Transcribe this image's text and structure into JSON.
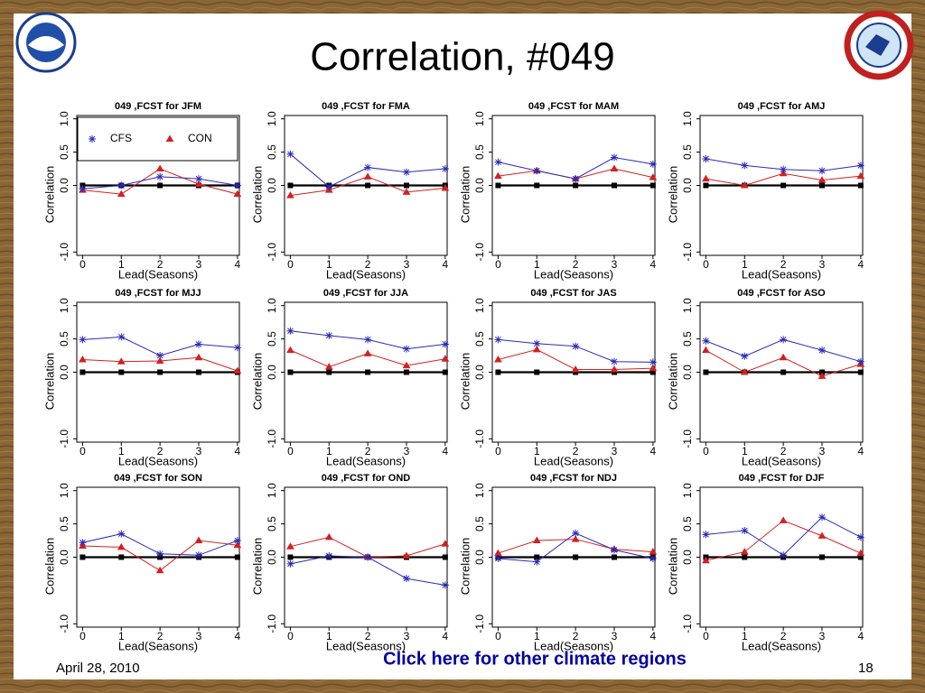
{
  "slide_title": "Correlation, #049",
  "date": "April 28, 2010",
  "page_number": "18",
  "link": "Click here for other climate regions",
  "chart_data": [
    {
      "type": "line",
      "title": "049 ,FCST for JFM",
      "xlabel": "Lead(Seasons)",
      "ylabel": "Correlation",
      "legend": "upper left",
      "x": [
        0,
        1,
        2,
        3,
        4
      ],
      "xlim": [
        -0.15,
        4.05
      ],
      "xticks": [
        0,
        1,
        2,
        3,
        4
      ],
      "ylim": [
        -1.05,
        1.05
      ],
      "yticks": [
        {
          "value": 1,
          "label": "1.0"
        },
        {
          "value": 0.5,
          "label": "0.5"
        },
        {
          "value": 0,
          "label": "0.0"
        },
        {
          "value": -1,
          "label": "-1.0"
        }
      ],
      "series": [
        {
          "name": "CFS",
          "color": "#2a2ab8",
          "marker": "star",
          "values": [
            -0.05,
            0.0,
            0.13,
            0.1,
            0.0
          ]
        },
        {
          "name": "CON",
          "color": "#d42020",
          "marker": "triangle",
          "values": [
            -0.07,
            -0.13,
            0.25,
            0.02,
            -0.13
          ]
        },
        {
          "color": "#000000",
          "marker": "square",
          "values": [
            0,
            0,
            0,
            0,
            0
          ]
        }
      ]
    },
    {
      "type": "line",
      "title": "049 ,FCST for FMA",
      "xlabel": "Lead(Seasons)",
      "ylabel": "Correlation",
      "x": [
        0,
        1,
        2,
        3,
        4
      ],
      "xlim": [
        -0.15,
        4.05
      ],
      "xticks": [
        0,
        1,
        2,
        3,
        4
      ],
      "ylim": [
        -1.05,
        1.05
      ],
      "yticks": [
        {
          "value": 1,
          "label": "1.0"
        },
        {
          "value": 0.5,
          "label": "0.5"
        },
        {
          "value": 0,
          "label": "0.0"
        },
        {
          "value": -1,
          "label": "-1.0"
        }
      ],
      "series": [
        {
          "name": "CFS",
          "color": "#2a2ab8",
          "marker": "star",
          "values": [
            0.47,
            -0.02,
            0.27,
            0.2,
            0.25
          ]
        },
        {
          "name": "CON",
          "color": "#d42020",
          "marker": "triangle",
          "values": [
            -0.15,
            -0.07,
            0.13,
            -0.1,
            -0.04
          ]
        },
        {
          "color": "#000000",
          "marker": "square",
          "values": [
            0,
            0,
            0,
            0,
            0
          ]
        }
      ]
    },
    {
      "type": "line",
      "title": "049 ,FCST for MAM",
      "xlabel": "Lead(Seasons)",
      "ylabel": "Correlation",
      "x": [
        0,
        1,
        2,
        3,
        4
      ],
      "xlim": [
        -0.15,
        4.05
      ],
      "xticks": [
        0,
        1,
        2,
        3,
        4
      ],
      "ylim": [
        -1.05,
        1.05
      ],
      "yticks": [
        {
          "value": 1,
          "label": "1.0"
        },
        {
          "value": 0.5,
          "label": "0.5"
        },
        {
          "value": 0,
          "label": "0.0"
        },
        {
          "value": -1,
          "label": "-1.0"
        }
      ],
      "series": [
        {
          "name": "CFS",
          "color": "#2a2ab8",
          "marker": "star",
          "values": [
            0.35,
            0.22,
            0.1,
            0.42,
            0.32
          ]
        },
        {
          "name": "CON",
          "color": "#d42020",
          "marker": "triangle",
          "values": [
            0.14,
            0.22,
            0.1,
            0.25,
            0.12
          ]
        },
        {
          "color": "#000000",
          "marker": "square",
          "values": [
            0,
            0,
            0,
            0,
            0
          ]
        }
      ]
    },
    {
      "type": "line",
      "title": "049 ,FCST for AMJ",
      "xlabel": "Lead(Seasons)",
      "ylabel": "Correlation",
      "x": [
        0,
        1,
        2,
        3,
        4
      ],
      "xlim": [
        -0.15,
        4.05
      ],
      "xticks": [
        0,
        1,
        2,
        3,
        4
      ],
      "ylim": [
        -1.05,
        1.05
      ],
      "yticks": [
        {
          "value": 1,
          "label": "1.0"
        },
        {
          "value": 0.5,
          "label": "0.5"
        },
        {
          "value": 0,
          "label": "0.0"
        },
        {
          "value": -1,
          "label": "-1.0"
        }
      ],
      "series": [
        {
          "name": "CFS",
          "color": "#2a2ab8",
          "marker": "star",
          "values": [
            0.4,
            0.3,
            0.24,
            0.22,
            0.3
          ]
        },
        {
          "name": "CON",
          "color": "#d42020",
          "marker": "triangle",
          "values": [
            0.1,
            0.0,
            0.18,
            0.08,
            0.14
          ]
        },
        {
          "color": "#000000",
          "marker": "square",
          "values": [
            0,
            0,
            0,
            0,
            0
          ]
        }
      ]
    },
    {
      "type": "line",
      "title": "049 ,FCST for MJJ",
      "xlabel": "Lead(Seasons)",
      "ylabel": "Correlation",
      "x": [
        0,
        1,
        2,
        3,
        4
      ],
      "xlim": [
        -0.15,
        4.05
      ],
      "xticks": [
        0,
        1,
        2,
        3,
        4
      ],
      "ylim": [
        -1.05,
        1.05
      ],
      "yticks": [
        {
          "value": 1,
          "label": "1.0"
        },
        {
          "value": 0.5,
          "label": "0.5"
        },
        {
          "value": 0,
          "label": "0.0"
        },
        {
          "value": -1,
          "label": "-1.0"
        }
      ],
      "series": [
        {
          "name": "CFS",
          "color": "#2a2ab8",
          "marker": "star",
          "values": [
            0.49,
            0.53,
            0.25,
            0.42,
            0.37
          ]
        },
        {
          "name": "CON",
          "color": "#d42020",
          "marker": "triangle",
          "values": [
            0.19,
            0.16,
            0.17,
            0.22,
            0.02
          ]
        },
        {
          "color": "#000000",
          "marker": "square",
          "values": [
            0,
            0,
            0,
            0,
            0
          ]
        }
      ]
    },
    {
      "type": "line",
      "title": "049 ,FCST for JJA",
      "xlabel": "Lead(Seasons)",
      "ylabel": "Correlation",
      "x": [
        0,
        1,
        2,
        3,
        4
      ],
      "xlim": [
        -0.15,
        4.05
      ],
      "xticks": [
        0,
        1,
        2,
        3,
        4
      ],
      "ylim": [
        -1.05,
        1.05
      ],
      "yticks": [
        {
          "value": 1,
          "label": "1.0"
        },
        {
          "value": 0.5,
          "label": "0.5"
        },
        {
          "value": 0,
          "label": "0.0"
        },
        {
          "value": -1,
          "label": "-1.0"
        }
      ],
      "series": [
        {
          "name": "CFS",
          "color": "#2a2ab8",
          "marker": "star",
          "values": [
            0.62,
            0.55,
            0.49,
            0.35,
            0.42
          ]
        },
        {
          "name": "CON",
          "color": "#d42020",
          "marker": "triangle",
          "values": [
            0.33,
            0.08,
            0.28,
            0.1,
            0.2
          ]
        },
        {
          "color": "#000000",
          "marker": "square",
          "values": [
            0,
            0,
            0,
            0,
            0
          ]
        }
      ]
    },
    {
      "type": "line",
      "title": "049 ,FCST for JAS",
      "xlabel": "Lead(Seasons)",
      "ylabel": "Correlation",
      "x": [
        0,
        1,
        2,
        3,
        4
      ],
      "xlim": [
        -0.15,
        4.05
      ],
      "xticks": [
        0,
        1,
        2,
        3,
        4
      ],
      "ylim": [
        -1.05,
        1.05
      ],
      "yticks": [
        {
          "value": 1,
          "label": "1.0"
        },
        {
          "value": 0.5,
          "label": "0.5"
        },
        {
          "value": 0,
          "label": "0.0"
        },
        {
          "value": -1,
          "label": "-1.0"
        }
      ],
      "series": [
        {
          "name": "CFS",
          "color": "#2a2ab8",
          "marker": "star",
          "values": [
            0.49,
            0.43,
            0.39,
            0.16,
            0.15
          ]
        },
        {
          "name": "CON",
          "color": "#d42020",
          "marker": "triangle",
          "values": [
            0.19,
            0.34,
            0.04,
            0.04,
            0.06
          ]
        },
        {
          "color": "#000000",
          "marker": "square",
          "values": [
            0,
            0,
            0,
            0,
            0
          ]
        }
      ]
    },
    {
      "type": "line",
      "title": "049 ,FCST for ASO",
      "xlabel": "Lead(Seasons)",
      "ylabel": "Correlation",
      "x": [
        0,
        1,
        2,
        3,
        4
      ],
      "xlim": [
        -0.15,
        4.05
      ],
      "xticks": [
        0,
        1,
        2,
        3,
        4
      ],
      "ylim": [
        -1.05,
        1.05
      ],
      "yticks": [
        {
          "value": 1,
          "label": "1.0"
        },
        {
          "value": 0.5,
          "label": "0.5"
        },
        {
          "value": 0,
          "label": "0.0"
        },
        {
          "value": -1,
          "label": "-1.0"
        }
      ],
      "series": [
        {
          "name": "CFS",
          "color": "#2a2ab8",
          "marker": "star",
          "values": [
            0.47,
            0.24,
            0.49,
            0.33,
            0.16
          ]
        },
        {
          "name": "CON",
          "color": "#d42020",
          "marker": "triangle",
          "values": [
            0.33,
            0.0,
            0.22,
            -0.06,
            0.12
          ]
        },
        {
          "color": "#000000",
          "marker": "square",
          "values": [
            0,
            0,
            0,
            0,
            0
          ]
        }
      ]
    },
    {
      "type": "line",
      "title": "049 ,FCST for SON",
      "xlabel": "Lead(Seasons)",
      "ylabel": "Correlation",
      "x": [
        0,
        1,
        2,
        3,
        4
      ],
      "xlim": [
        -0.15,
        4.05
      ],
      "xticks": [
        0,
        1,
        2,
        3,
        4
      ],
      "ylim": [
        -1.05,
        1.05
      ],
      "yticks": [
        {
          "value": 1,
          "label": "1.0"
        },
        {
          "value": 0.5,
          "label": "0.5"
        },
        {
          "value": 0,
          "label": "0.0"
        },
        {
          "value": -1,
          "label": "-1.0"
        }
      ],
      "series": [
        {
          "name": "CFS",
          "color": "#2a2ab8",
          "marker": "star",
          "values": [
            0.22,
            0.35,
            0.05,
            0.03,
            0.25
          ]
        },
        {
          "name": "CON",
          "color": "#d42020",
          "marker": "triangle",
          "values": [
            0.17,
            0.15,
            -0.2,
            0.25,
            0.18
          ]
        },
        {
          "color": "#000000",
          "marker": "square",
          "values": [
            0,
            0,
            0,
            0,
            0
          ]
        }
      ]
    },
    {
      "type": "line",
      "title": "049 ,FCST for OND",
      "xlabel": "Lead(Seasons)",
      "ylabel": "Correlation",
      "x": [
        0,
        1,
        2,
        3,
        4
      ],
      "xlim": [
        -0.15,
        4.05
      ],
      "xticks": [
        0,
        1,
        2,
        3,
        4
      ],
      "ylim": [
        -1.05,
        1.05
      ],
      "yticks": [
        {
          "value": 1,
          "label": "1.0"
        },
        {
          "value": 0.5,
          "label": "0.5"
        },
        {
          "value": 0,
          "label": "0.0"
        },
        {
          "value": -1,
          "label": "-1.0"
        }
      ],
      "series": [
        {
          "name": "CFS",
          "color": "#2a2ab8",
          "marker": "star",
          "values": [
            -0.1,
            0.02,
            0.0,
            -0.32,
            -0.42
          ]
        },
        {
          "name": "CON",
          "color": "#d42020",
          "marker": "triangle",
          "values": [
            0.16,
            0.3,
            0.0,
            0.02,
            0.2
          ]
        },
        {
          "color": "#000000",
          "marker": "square",
          "values": [
            0,
            0,
            0,
            0,
            0
          ]
        }
      ]
    },
    {
      "type": "line",
      "title": "049 ,FCST for NDJ",
      "xlabel": "Lead(Seasons)",
      "ylabel": "Correlation",
      "x": [
        0,
        1,
        2,
        3,
        4
      ],
      "xlim": [
        -0.15,
        4.05
      ],
      "xticks": [
        0,
        1,
        2,
        3,
        4
      ],
      "ylim": [
        -1.05,
        1.05
      ],
      "yticks": [
        {
          "value": 1,
          "label": "1.0"
        },
        {
          "value": 0.5,
          "label": "0.5"
        },
        {
          "value": 0,
          "label": "0.0"
        },
        {
          "value": -1,
          "label": "-1.0"
        }
      ],
      "series": [
        {
          "name": "CFS",
          "color": "#2a2ab8",
          "marker": "star",
          "values": [
            -0.02,
            -0.07,
            0.36,
            0.11,
            -0.02
          ]
        },
        {
          "name": "CON",
          "color": "#d42020",
          "marker": "triangle",
          "values": [
            0.06,
            0.25,
            0.27,
            0.12,
            0.08
          ]
        },
        {
          "color": "#000000",
          "marker": "square",
          "values": [
            0,
            0,
            0,
            0,
            0
          ]
        }
      ]
    },
    {
      "type": "line",
      "title": "049 ,FCST for DJF",
      "xlabel": "Lead(Seasons)",
      "ylabel": "Correlation",
      "x": [
        0,
        1,
        2,
        3,
        4
      ],
      "xlim": [
        -0.15,
        4.05
      ],
      "xticks": [
        0,
        1,
        2,
        3,
        4
      ],
      "ylim": [
        -1.05,
        1.05
      ],
      "yticks": [
        {
          "value": 1,
          "label": "1.0"
        },
        {
          "value": 0.5,
          "label": "0.5"
        },
        {
          "value": 0,
          "label": "0.0"
        },
        {
          "value": -1,
          "label": "-1.0"
        }
      ],
      "series": [
        {
          "name": "CFS",
          "color": "#2a2ab8",
          "marker": "star",
          "values": [
            0.34,
            0.4,
            0.03,
            0.6,
            0.3
          ]
        },
        {
          "name": "CON",
          "color": "#d42020",
          "marker": "triangle",
          "values": [
            -0.05,
            0.08,
            0.55,
            0.32,
            0.06
          ]
        },
        {
          "color": "#000000",
          "marker": "square",
          "values": [
            0,
            0,
            0,
            0,
            0
          ]
        }
      ]
    }
  ]
}
